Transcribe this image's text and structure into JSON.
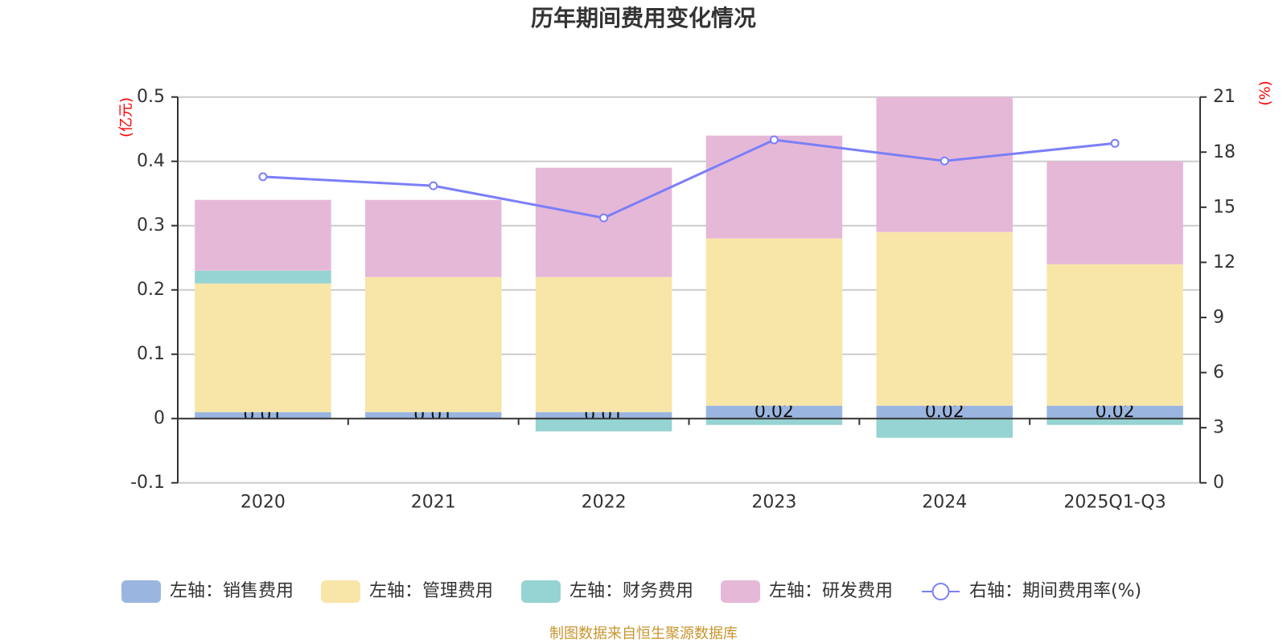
{
  "title": "历年期间费用变化情况",
  "footer": "制图数据来自恒生聚源数据库",
  "chart_data": {
    "type": "bar",
    "title": "历年期间费用变化情况",
    "categories": [
      "2020",
      "2021",
      "2022",
      "2023",
      "2024",
      "2025Q1-Q3"
    ],
    "y_left": {
      "unit": "(亿元)",
      "min": -0.1,
      "max": 0.5,
      "ticks": [
        -0.1,
        0,
        0.1,
        0.2,
        0.3,
        0.4,
        0.5
      ],
      "unit_color": "#ff0000"
    },
    "y_right": {
      "unit": "(%)",
      "min": 0,
      "max": 21,
      "ticks": [
        0,
        3,
        6,
        9,
        12,
        15,
        18,
        21
      ],
      "unit_color": "#ff0000"
    },
    "grid": true,
    "series": [
      {
        "name": "左轴：销售费用",
        "type": "bar",
        "axis": "left",
        "stack": "total",
        "color": "#9ab6e0",
        "values": [
          0.01,
          0.01,
          0.01,
          0.02,
          0.02,
          0.02
        ],
        "show_labels": true,
        "labels": [
          "0.01",
          "0.01",
          "0.01",
          "0.02",
          "0.02",
          "0.02"
        ]
      },
      {
        "name": "左轴：管理费用",
        "type": "bar",
        "axis": "left",
        "stack": "total",
        "color": "#f8e6a8",
        "values": [
          0.2,
          0.21,
          0.21,
          0.26,
          0.27,
          0.22
        ],
        "show_labels": false
      },
      {
        "name": "左轴：财务费用",
        "type": "bar",
        "axis": "left",
        "stack": "total",
        "color": "#96d3d3",
        "values": [
          0.02,
          0.0,
          -0.02,
          -0.01,
          -0.03,
          -0.01
        ],
        "show_labels": false
      },
      {
        "name": "左轴：研发费用",
        "type": "bar",
        "axis": "left",
        "stack": "total",
        "color": "#e6b8d8",
        "values": [
          0.11,
          0.12,
          0.17,
          0.16,
          0.21,
          0.16
        ],
        "show_labels": false
      },
      {
        "name": "右轴：期间费用率(%)",
        "type": "line",
        "axis": "right",
        "color": "#7b7ff7",
        "values": [
          16.66,
          16.17,
          14.42,
          18.67,
          17.52,
          18.48
        ],
        "show_labels": false
      }
    ],
    "legend": [
      {
        "label": "左轴：销售费用",
        "color": "#9ab6e0",
        "symbol": "rect"
      },
      {
        "label": "左轴：管理费用",
        "color": "#f8e6a8",
        "symbol": "rect"
      },
      {
        "label": "左轴：财务费用",
        "color": "#96d3d3",
        "symbol": "rect"
      },
      {
        "label": "左轴：研发费用",
        "color": "#e6b8d8",
        "symbol": "rect"
      },
      {
        "label": "右轴：期间费用率(%)",
        "color": "#7b7ff7",
        "symbol": "line-circle"
      }
    ],
    "legend_position": "bottom"
  }
}
